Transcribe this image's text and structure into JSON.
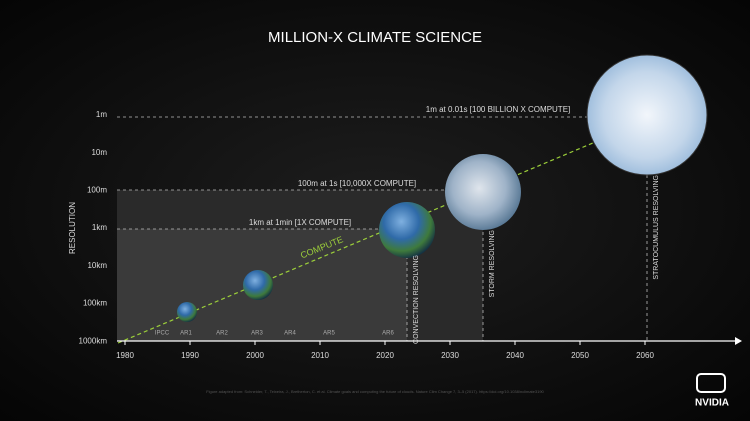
{
  "title": "MILLION-X CLIMATE SCIENCE",
  "y_axis": {
    "label": "RESOLUTION",
    "levels": [
      "1m",
      "10m",
      "100m",
      "1km",
      "10km",
      "100km",
      "1000km"
    ]
  },
  "x_axis": {
    "ticks": [
      1980,
      1990,
      2000,
      2010,
      2020,
      2030,
      2040,
      2050,
      2060
    ]
  },
  "reports": [
    "IPCC",
    "AR1",
    "AR2",
    "AR3",
    "AR4",
    "AR5",
    "AR6"
  ],
  "trend_label": "COMPUTE",
  "annotations": [
    "1m at 0.01s [100 BILLION X COMPUTE]",
    "100m at 1s [10,000X COMPUTE]",
    "1km at 1min [1X COMPUTE]"
  ],
  "regimes": [
    "CONVECTION RESOLVING",
    "STORM RESOLVING",
    "STRATOCUMULUS RESOLVING"
  ],
  "footnote": "Figure adapted from: Schneider, T., Teixeira, J., Bretherton, C. et al. Climate goals and computing the future of clouds. Nature Clim Change 7, 3–5 (2017). https://doi.org/10.1038/nclimate3190",
  "logo": "NVIDIA"
}
